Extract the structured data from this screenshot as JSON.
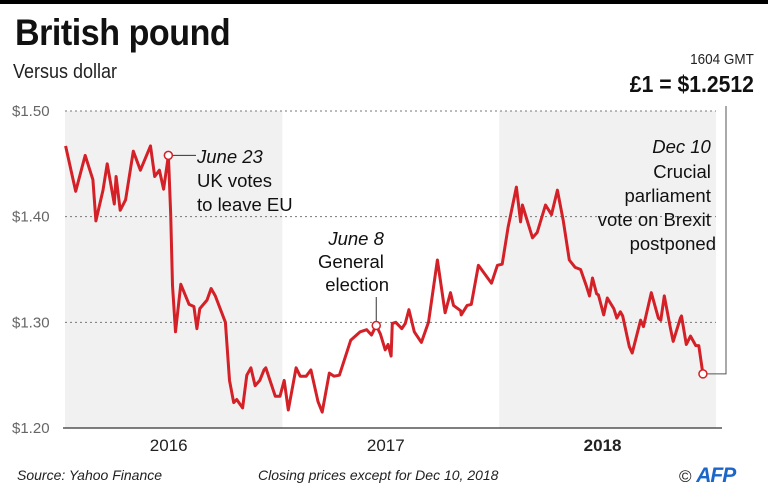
{
  "header": {
    "title": "British pound",
    "subtitle": "Versus dollar",
    "time": "1604 GMT",
    "rate": "£1 = $1.2512"
  },
  "footer": {
    "source": "Source: Yahoo Finance",
    "note": "Closing prices except for Dec 10, 2018",
    "copyright": "©",
    "logo": "AFP"
  },
  "colors": {
    "line": "#d42027",
    "shade": "#f1f1f1",
    "grid": "#777777",
    "logo": "#1b66c9"
  },
  "chart_data": {
    "type": "line",
    "title": "British pound",
    "subtitle": "Versus dollar",
    "ylim": [
      1.2,
      1.5
    ],
    "yticks": [
      1.5,
      1.4,
      1.3,
      1.2
    ],
    "ytick_labels": [
      "$1.50",
      "$1.40",
      "$1.30",
      "$1.20"
    ],
    "xlim": [
      "2016-01-01",
      "2019-01-01"
    ],
    "xtick_labels": [
      "2016",
      "2017",
      "2018"
    ],
    "shaded_years": [
      "2016",
      "2018"
    ],
    "grid": "horizontal dotted",
    "series": [
      {
        "x": [
          "2016-01-02",
          "2016-01-19",
          "2016-02-04",
          "2016-02-17",
          "2016-02-22",
          "2016-03-05",
          "2016-03-12",
          "2016-03-24",
          "2016-03-27",
          "2016-04-03",
          "2016-04-12",
          "2016-04-25",
          "2016-05-07",
          "2016-05-24",
          "2016-05-31",
          "2016-06-08",
          "2016-06-15",
          "2016-06-23",
          "2016-06-27",
          "2016-06-30",
          "2016-07-05",
          "2016-07-14",
          "2016-07-28",
          "2016-08-05",
          "2016-08-10",
          "2016-08-15",
          "2016-08-27",
          "2016-09-03",
          "2016-09-10",
          "2016-09-27",
          "2016-10-04",
          "2016-10-11",
          "2016-10-16",
          "2016-10-26",
          "2016-11-02",
          "2016-11-09",
          "2016-11-16",
          "2016-11-24",
          "2016-12-01",
          "2016-12-04",
          "2016-12-20",
          "2016-12-28",
          "2017-01-04",
          "2017-01-11",
          "2017-01-24",
          "2017-01-31",
          "2017-02-10",
          "2017-02-18",
          "2017-03-02",
          "2017-03-09",
          "2017-03-21",
          "2017-03-29",
          "2017-04-07",
          "2017-04-26",
          "2017-05-12",
          "2017-05-23",
          "2017-05-31",
          "2017-06-08",
          "2017-06-15",
          "2017-06-23",
          "2017-06-28",
          "2017-07-03",
          "2017-07-05",
          "2017-07-11",
          "2017-07-21",
          "2017-07-27",
          "2017-08-02",
          "2017-08-11",
          "2017-08-23",
          "2017-09-04",
          "2017-09-19",
          "2017-10-02",
          "2017-10-11",
          "2017-10-16",
          "2017-10-28",
          "2017-10-29",
          "2017-11-08",
          "2017-11-15",
          "2017-11-27",
          "2017-12-19",
          "2017-12-29",
          "2018-01-06",
          "2018-01-16",
          "2018-01-30",
          "2018-02-06",
          "2018-02-09",
          "2018-02-26",
          "2018-03-06",
          "2018-03-20",
          "2018-03-30",
          "2018-04-09",
          "2018-04-19",
          "2018-04-29",
          "2018-05-09",
          "2018-05-18",
          "2018-05-28",
          "2018-06-02",
          "2018-06-07",
          "2018-06-14",
          "2018-06-17",
          "2018-06-26",
          "2018-07-02",
          "2018-07-13",
          "2018-07-18",
          "2018-07-24",
          "2018-07-28",
          "2018-08-08",
          "2018-08-13",
          "2018-08-27",
          "2018-09-01",
          "2018-09-14",
          "2018-09-26",
          "2018-09-30",
          "2018-10-06",
          "2018-10-16",
          "2018-10-21",
          "2018-11-02",
          "2018-11-04",
          "2018-11-12",
          "2018-11-19",
          "2018-11-28",
          "2018-12-03",
          "2018-12-10"
        ],
        "y": [
          1.467,
          1.424,
          1.458,
          1.435,
          1.396,
          1.425,
          1.45,
          1.412,
          1.438,
          1.406,
          1.416,
          1.462,
          1.444,
          1.467,
          1.438,
          1.444,
          1.426,
          1.458,
          1.402,
          1.335,
          1.291,
          1.336,
          1.317,
          1.315,
          1.294,
          1.313,
          1.321,
          1.332,
          1.325,
          1.3,
          1.245,
          1.224,
          1.227,
          1.219,
          1.25,
          1.257,
          1.24,
          1.245,
          1.255,
          1.257,
          1.23,
          1.23,
          1.245,
          1.217,
          1.257,
          1.249,
          1.249,
          1.255,
          1.225,
          1.215,
          1.252,
          1.249,
          1.25,
          1.283,
          1.291,
          1.293,
          1.288,
          1.297,
          1.289,
          1.274,
          1.279,
          1.268,
          1.299,
          1.3,
          1.294,
          1.299,
          1.312,
          1.291,
          1.281,
          1.3,
          1.359,
          1.309,
          1.328,
          1.316,
          1.311,
          1.307,
          1.316,
          1.317,
          1.354,
          1.337,
          1.354,
          1.355,
          1.39,
          1.428,
          1.395,
          1.411,
          1.38,
          1.385,
          1.411,
          1.402,
          1.425,
          1.396,
          1.359,
          1.352,
          1.35,
          1.334,
          1.325,
          1.342,
          1.327,
          1.326,
          1.307,
          1.323,
          1.313,
          1.304,
          1.31,
          1.306,
          1.277,
          1.271,
          1.302,
          1.296,
          1.328,
          1.304,
          1.302,
          1.325,
          1.295,
          1.282,
          1.304,
          1.306,
          1.279,
          1.287,
          1.278,
          1.278,
          1.2512
        ]
      }
    ],
    "annotations": [
      {
        "date": "2016-06-23",
        "label_date": "June 23",
        "lines": [
          "UK votes",
          "to leave EU"
        ]
      },
      {
        "date": "2017-06-08",
        "label_date": "June 8",
        "lines": [
          "General",
          "election"
        ]
      },
      {
        "date": "2018-12-10",
        "label_date": "Dec 10",
        "lines": [
          "Crucial",
          "parliament",
          "vote on Brexit",
          "postponed"
        ]
      }
    ]
  }
}
